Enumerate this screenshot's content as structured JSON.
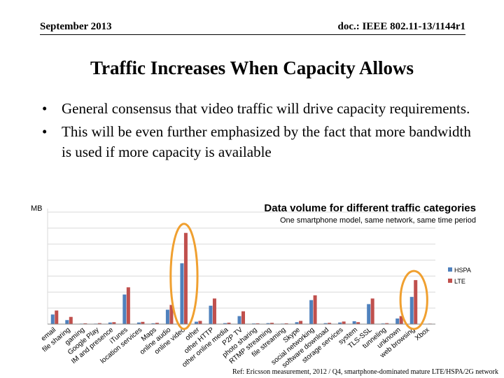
{
  "header": {
    "date": "September 2013",
    "doc": "doc.: IEEE 802.11-13/1144r1"
  },
  "slide_title": "Traffic Increases When Capacity Allows",
  "bullets": [
    "General consensus that video traffic will drive capacity requirements.",
    "This will be even further emphasized by the fact that more bandwidth is used if more capacity is available"
  ],
  "footer_ref": "Ref: Ericsson measurement, 2012 / Q4, smartphone-dominated mature LTE/HSPA/2G network",
  "colors": {
    "hspa": "#4f81bd",
    "lte": "#c0504d",
    "highlight": "#f0a030",
    "grid": "#d9d9d9"
  },
  "chart_data": {
    "type": "bar",
    "title": "Data volume for different traffic categories",
    "subtitle": "One smartphone model, same network, same time period",
    "ylabel": "MB",
    "xlabel": "",
    "ylim": [
      0,
      7
    ],
    "gridlines": [
      1,
      2,
      3,
      4,
      5,
      6,
      7
    ],
    "categories": [
      "email",
      "file sharing",
      "gaming",
      "Google Play",
      "IM and presence",
      "iTunes",
      "location services",
      "Maps",
      "online audio",
      "online video",
      "other",
      "other HTTP",
      "other online media",
      "P2P TV",
      "photo sharing",
      "RTMP streaming",
      "file streaming",
      "Skype",
      "social networking",
      "software download",
      "storage services",
      "system",
      "TLS-SSL",
      "tunneling",
      "unknown",
      "web browsing",
      "Xbox"
    ],
    "series": [
      {
        "name": "HSPA",
        "values": [
          0.6,
          0.25,
          0.03,
          0.03,
          0.1,
          1.85,
          0.1,
          0.05,
          0.9,
          3.8,
          0.15,
          1.15,
          0.06,
          0.5,
          0.04,
          0.06,
          0.03,
          0.12,
          1.5,
          0.06,
          0.1,
          0.18,
          1.25,
          0.04,
          0.35,
          1.7,
          0.02
        ]
      },
      {
        "name": "LTE",
        "values": [
          0.85,
          0.45,
          0.05,
          0.06,
          0.12,
          2.3,
          0.14,
          0.08,
          1.2,
          5.7,
          0.2,
          1.6,
          0.09,
          0.8,
          0.05,
          0.08,
          0.05,
          0.2,
          1.8,
          0.08,
          0.16,
          0.12,
          1.6,
          0.06,
          0.5,
          2.75,
          0.03
        ]
      }
    ],
    "legend": [
      "HSPA",
      "LTE"
    ],
    "legend_position": "right",
    "highlighted_categories": [
      "online video",
      "web browsing"
    ]
  }
}
